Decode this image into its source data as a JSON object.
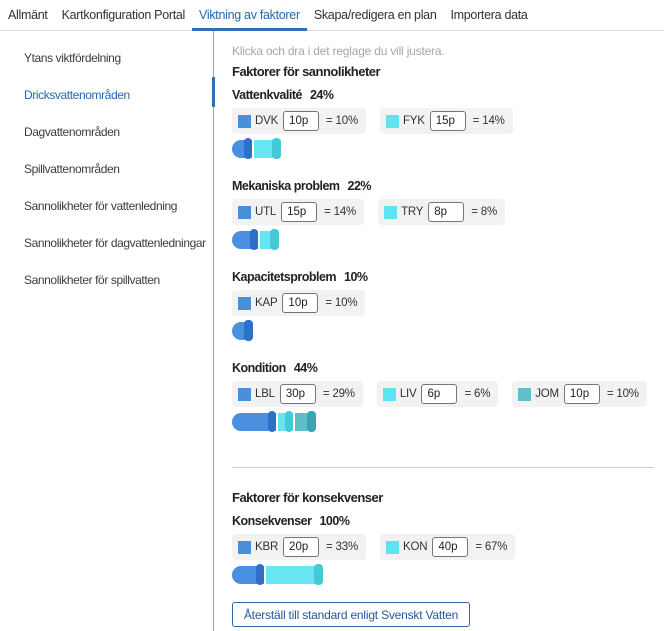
{
  "tabs": [
    {
      "label": "Allmänt",
      "active": false
    },
    {
      "label": "Kartkonfiguration Portal",
      "active": false
    },
    {
      "label": "Viktning av faktorer",
      "active": true
    },
    {
      "label": "Skapa/redigera en plan",
      "active": false
    },
    {
      "label": "Importera data",
      "active": false
    }
  ],
  "sidebar": {
    "items": [
      {
        "label": "Ytans viktfördelning",
        "active": false
      },
      {
        "label": "Dricksvattenområden",
        "active": true
      },
      {
        "label": "Dagvattenområden",
        "active": false
      },
      {
        "label": "Spillvattenområden",
        "active": false
      },
      {
        "label": "Sannolikheter för vattenledning",
        "active": false
      },
      {
        "label": "Sannolikheter för dagvattenledningar",
        "active": false
      },
      {
        "label": "Sannolikheter för spillvatten",
        "active": false
      }
    ]
  },
  "main": {
    "instruction": "Klicka och dra i det reglage du vill justera.",
    "sections": [
      {
        "title": "Faktorer för sannolikheter",
        "groups": [
          {
            "name": "Vattenkvalité",
            "percent": "24%",
            "factors": [
              {
                "code": "DVK",
                "points": "10p",
                "share": "= 10%",
                "color": "blue"
              },
              {
                "code": "FYK",
                "points": "15p",
                "share": "= 14%",
                "color": "cyan"
              }
            ]
          },
          {
            "name": "Mekaniska problem",
            "percent": "22%",
            "factors": [
              {
                "code": "UTL",
                "points": "15p",
                "share": "= 14%",
                "color": "blue"
              },
              {
                "code": "TRY",
                "points": "8p",
                "share": "= 8%",
                "color": "cyan"
              }
            ]
          },
          {
            "name": "Kapacitetsproblem",
            "percent": "10%",
            "factors": [
              {
                "code": "KAP",
                "points": "10p",
                "share": "= 10%",
                "color": "blue"
              }
            ]
          },
          {
            "name": "Kondition",
            "percent": "44%",
            "factors": [
              {
                "code": "LBL",
                "points": "30p",
                "share": "= 29%",
                "color": "blue"
              },
              {
                "code": "LIV",
                "points": "6p",
                "share": "= 6%",
                "color": "cyan"
              },
              {
                "code": "JOM",
                "points": "10p",
                "share": "= 10%",
                "color": "teal"
              }
            ]
          }
        ]
      },
      {
        "title": "Faktorer för konsekvenser",
        "groups": [
          {
            "name": "Konsekvenser",
            "percent": "100%",
            "factors": [
              {
                "code": "KBR",
                "points": "20p",
                "share": "= 33%",
                "color": "blue"
              },
              {
                "code": "KON",
                "points": "40p",
                "share": "= 67%",
                "color": "cyan"
              }
            ]
          }
        ]
      }
    ],
    "reset_button": "Återställ till standard enligt Svenskt Vatten"
  },
  "colors": {
    "blue": {
      "square": "#4a90d9",
      "bar": "#4a90e0",
      "handle": "#2e6fc9"
    },
    "cyan": {
      "square": "#5ee3f1",
      "bar": "#68e5f3",
      "handle": "#44c9d7"
    },
    "teal": {
      "square": "#5fbfcf",
      "bar": "#61bdc9",
      "handle": "#3ba3b2"
    },
    "accent": "#2e6fb7"
  }
}
